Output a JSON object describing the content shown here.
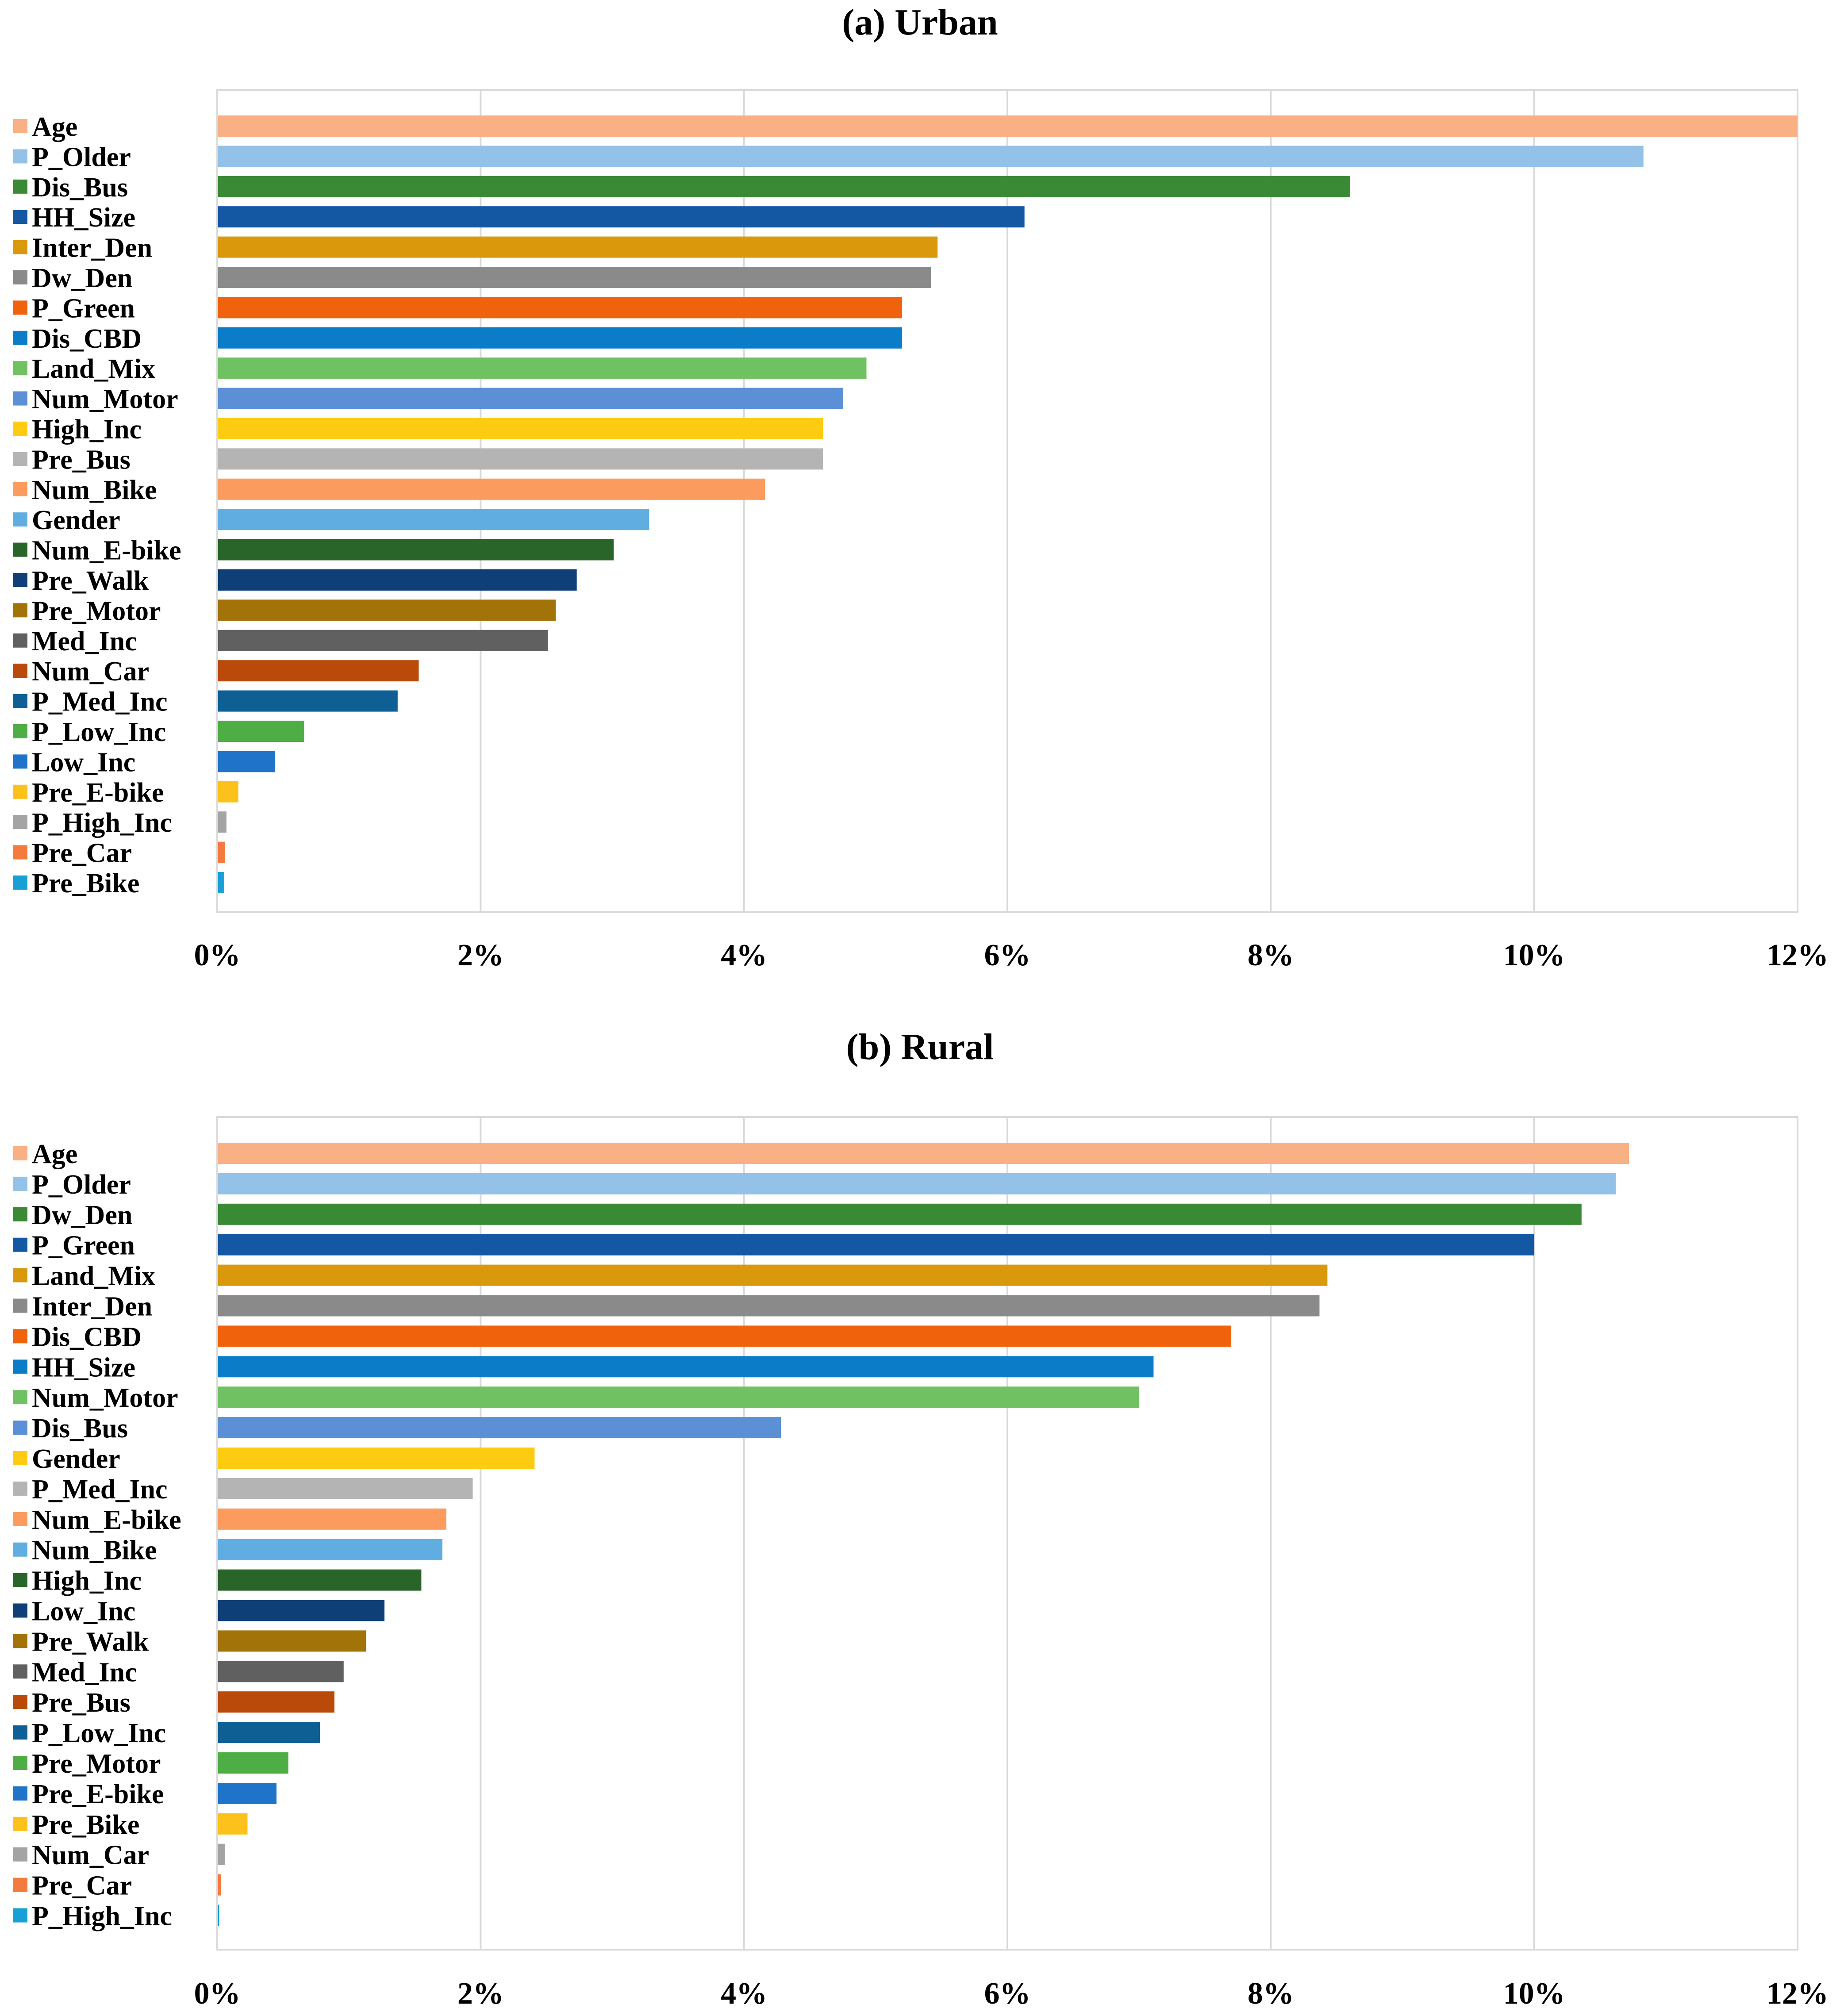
{
  "chart_data": [
    {
      "type": "bar",
      "orientation": "horizontal",
      "title": "(a) Urban",
      "xlabel": "",
      "ylabel": "",
      "xlim": [
        0,
        12
      ],
      "x_ticks": [
        "0%",
        "2%",
        "4%",
        "6%",
        "8%",
        "10%",
        "12%"
      ],
      "grid": true,
      "legend": "left",
      "categories": [
        "Age",
        "P_Older",
        "Dis_Bus",
        "HH_Size",
        "Inter_Den",
        "Dw_Den",
        "P_Green",
        "Dis_CBD",
        "Land_Mix",
        "Num_Motor",
        "High_Inc",
        "Pre_Bus",
        "Num_Bike",
        "Gender",
        "Num_E-bike",
        "Pre_Walk",
        "Pre_Motor",
        "Med_Inc",
        "Num_Car",
        "P_Med_Inc",
        "P_Low_Inc",
        "Low_Inc",
        "Pre_E-bike",
        "P_High_Inc",
        "Pre_Car",
        "Pre_Bike"
      ],
      "values": [
        12.0,
        10.83,
        8.6,
        6.13,
        5.47,
        5.42,
        5.2,
        5.2,
        4.93,
        4.75,
        4.6,
        4.6,
        4.16,
        3.28,
        3.01,
        2.73,
        2.57,
        2.51,
        1.53,
        1.37,
        0.66,
        0.44,
        0.16,
        0.07,
        0.06,
        0.05
      ],
      "colors": [
        "#F8B084",
        "#94C1E7",
        "#3A8A35",
        "#1457A3",
        "#DA980C",
        "#8A8A8A",
        "#F0620C",
        "#0B7DC8",
        "#70C162",
        "#5B8FD6",
        "#FDCC12",
        "#B4B4B4",
        "#FB9B5E",
        "#60AEE1",
        "#296429",
        "#0E3F76",
        "#A17308",
        "#606060",
        "#B94A0A",
        "#0E5F93",
        "#4EAE45",
        "#1F74CA",
        "#FDC11B",
        "#A4A4A4",
        "#F47A3E",
        "#179FD6"
      ]
    },
    {
      "type": "bar",
      "orientation": "horizontal",
      "title": "(b) Rural",
      "xlabel": "",
      "ylabel": "",
      "xlim": [
        0,
        12
      ],
      "x_ticks": [
        "0%",
        "2%",
        "4%",
        "6%",
        "8%",
        "10%",
        "12%"
      ],
      "grid": true,
      "legend": "left",
      "categories": [
        "Age",
        "P_Older",
        "Dw_Den",
        "P_Green",
        "Land_Mix",
        "Inter_Den",
        "Dis_CBD",
        "HH_Size",
        "Num_Motor",
        "Dis_Bus",
        "Gender",
        "P_Med_Inc",
        "Num_E-bike",
        "Num_Bike",
        "High_Inc",
        "Low_Inc",
        "Pre_Walk",
        "Med_Inc",
        "Pre_Bus",
        "P_Low_Inc",
        "Pre_Motor",
        "Pre_E-bike",
        "Pre_Bike",
        "Num_Car",
        "Pre_Car",
        "P_High_Inc"
      ],
      "values": [
        10.72,
        10.62,
        10.36,
        10.0,
        8.43,
        8.37,
        7.7,
        7.11,
        7.0,
        4.28,
        2.41,
        1.94,
        1.74,
        1.71,
        1.55,
        1.27,
        1.13,
        0.96,
        0.89,
        0.78,
        0.54,
        0.45,
        0.23,
        0.06,
        0.03,
        0.01
      ],
      "colors": [
        "#F8B084",
        "#94C1E7",
        "#3A8A35",
        "#1457A3",
        "#DA980C",
        "#8A8A8A",
        "#F0620C",
        "#0B7DC8",
        "#70C162",
        "#5B8FD6",
        "#FDCC12",
        "#B4B4B4",
        "#FB9B5E",
        "#60AEE1",
        "#296429",
        "#0E3F76",
        "#A17308",
        "#606060",
        "#B94A0A",
        "#0E5F93",
        "#4EAE45",
        "#1F74CA",
        "#FDC11B",
        "#A4A4A4",
        "#F47A3E",
        "#179FD6"
      ]
    }
  ]
}
